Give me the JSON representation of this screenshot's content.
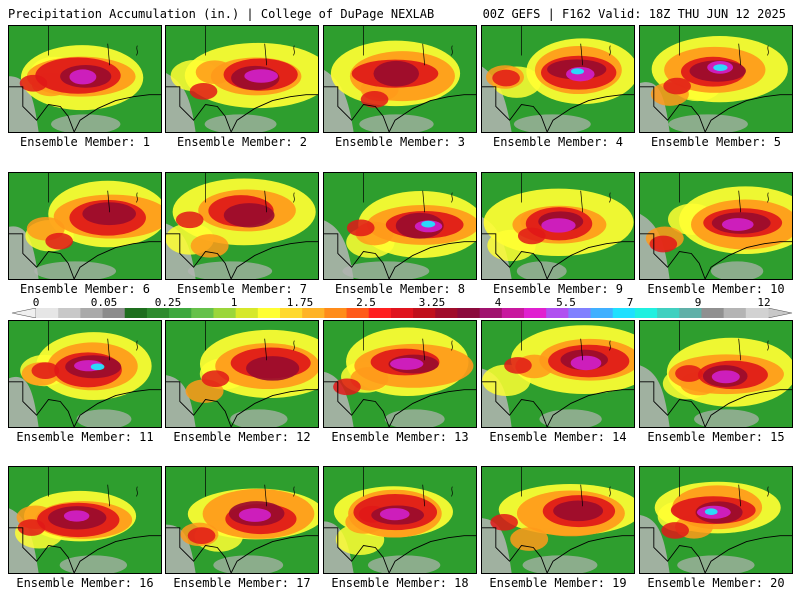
{
  "header": {
    "title": "Precipitation Accumulation (in.) | College of DuPage NEXLAB",
    "run_info": "00Z GEFS | F162 Valid: 18Z THU JUN 12 2025"
  },
  "colorbar": {
    "labels": [
      "0",
      "0.05",
      "0.25",
      "1",
      "1.75",
      "2.5",
      "3.25",
      "4",
      "5.5",
      "7",
      "9",
      "12"
    ],
    "colors": [
      "#e6e6e6",
      "#c8c8c8",
      "#aaaaaa",
      "#8c8c8c",
      "#1e6e1e",
      "#2e8b2e",
      "#3fa83f",
      "#66c14a",
      "#9bd63a",
      "#d6e82a",
      "#ffff33",
      "#ffd92e",
      "#ffb326",
      "#ff8c1a",
      "#ff5a1a",
      "#ff2020",
      "#e0141e",
      "#c0101c",
      "#a00c2a",
      "#8b0a3c",
      "#a0126e",
      "#c8189e",
      "#e020d0",
      "#b050f0",
      "#8080ff",
      "#40b0ff",
      "#20e0ff",
      "#20f0e0",
      "#40d0c0",
      "#60b0a8",
      "#909090",
      "#b4b4b4",
      "#d2d2d2"
    ]
  },
  "members": [
    {
      "label": "Ensemble Member: 1",
      "peak": 6
    },
    {
      "label": "Ensemble Member: 2",
      "peak": 6
    },
    {
      "label": "Ensemble Member: 3",
      "peak": 3
    },
    {
      "label": "Ensemble Member: 4",
      "peak": 7
    },
    {
      "label": "Ensemble Member: 5",
      "peak": 8
    },
    {
      "label": "Ensemble Member: 6",
      "peak": 3
    },
    {
      "label": "Ensemble Member: 7",
      "peak": 4
    },
    {
      "label": "Ensemble Member: 8",
      "peak": 7
    },
    {
      "label": "Ensemble Member: 9",
      "peak": 5
    },
    {
      "label": "Ensemble Member: 10",
      "peak": 5
    },
    {
      "label": "Ensemble Member: 11",
      "peak": 8
    },
    {
      "label": "Ensemble Member: 12",
      "peak": 3
    },
    {
      "label": "Ensemble Member: 13",
      "peak": 5
    },
    {
      "label": "Ensemble Member: 14",
      "peak": 5
    },
    {
      "label": "Ensemble Member: 15",
      "peak": 6
    },
    {
      "label": "Ensemble Member: 16",
      "peak": 5
    },
    {
      "label": "Ensemble Member: 17",
      "peak": 6
    },
    {
      "label": "Ensemble Member: 18",
      "peak": 6
    },
    {
      "label": "Ensemble Member: 19",
      "peak": 4
    },
    {
      "label": "Ensemble Member: 20",
      "peak": 7
    }
  ],
  "colors": {
    "land_green": "#2e9e2e",
    "dry_gray": "#b4b4b4",
    "yellow": "#ffff33",
    "orange": "#ff9a1a",
    "red": "#e01818",
    "maroon": "#9a0c2e",
    "magenta": "#d020c8",
    "cyan": "#20e8ff",
    "border": "#000000"
  }
}
